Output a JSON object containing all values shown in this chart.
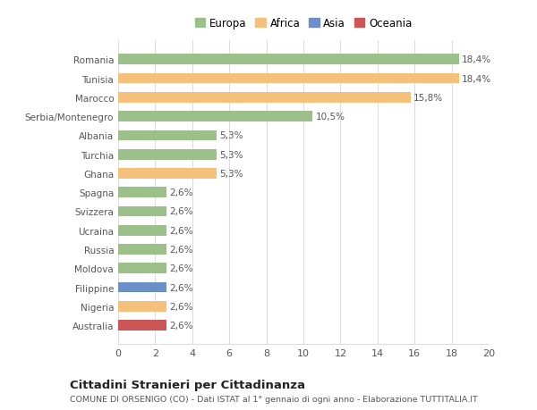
{
  "categories": [
    "Australia",
    "Nigeria",
    "Filippine",
    "Moldova",
    "Russia",
    "Ucraina",
    "Svizzera",
    "Spagna",
    "Ghana",
    "Turchia",
    "Albania",
    "Serbia/Montenegro",
    "Marocco",
    "Tunisia",
    "Romania"
  ],
  "values": [
    2.6,
    2.6,
    2.6,
    2.6,
    2.6,
    2.6,
    2.6,
    2.6,
    5.3,
    5.3,
    5.3,
    10.5,
    15.8,
    18.4,
    18.4
  ],
  "colors": [
    "#cc5555",
    "#f5c07a",
    "#6b8fc9",
    "#9dc08b",
    "#9dc08b",
    "#9dc08b",
    "#9dc08b",
    "#9dc08b",
    "#f5c07a",
    "#9dc08b",
    "#9dc08b",
    "#9dc08b",
    "#f5c07a",
    "#f5c07a",
    "#9dc08b"
  ],
  "labels": [
    "2,6%",
    "2,6%",
    "2,6%",
    "2,6%",
    "2,6%",
    "2,6%",
    "2,6%",
    "2,6%",
    "5,3%",
    "5,3%",
    "5,3%",
    "10,5%",
    "15,8%",
    "18,4%",
    "18,4%"
  ],
  "legend": [
    {
      "label": "Europa",
      "color": "#9dc08b"
    },
    {
      "label": "Africa",
      "color": "#f5c07a"
    },
    {
      "label": "Asia",
      "color": "#6b8fc9"
    },
    {
      "label": "Oceania",
      "color": "#cc5555"
    }
  ],
  "xlim": [
    0,
    20
  ],
  "xticks": [
    0,
    2,
    4,
    6,
    8,
    10,
    12,
    14,
    16,
    18,
    20
  ],
  "title": "Cittadini Stranieri per Cittadinanza",
  "subtitle": "COMUNE DI ORSENIGO (CO) - Dati ISTAT al 1° gennaio di ogni anno - Elaborazione TUTTITALIA.IT",
  "background_color": "#ffffff",
  "grid_color": "#dddddd",
  "bar_height": 0.55
}
